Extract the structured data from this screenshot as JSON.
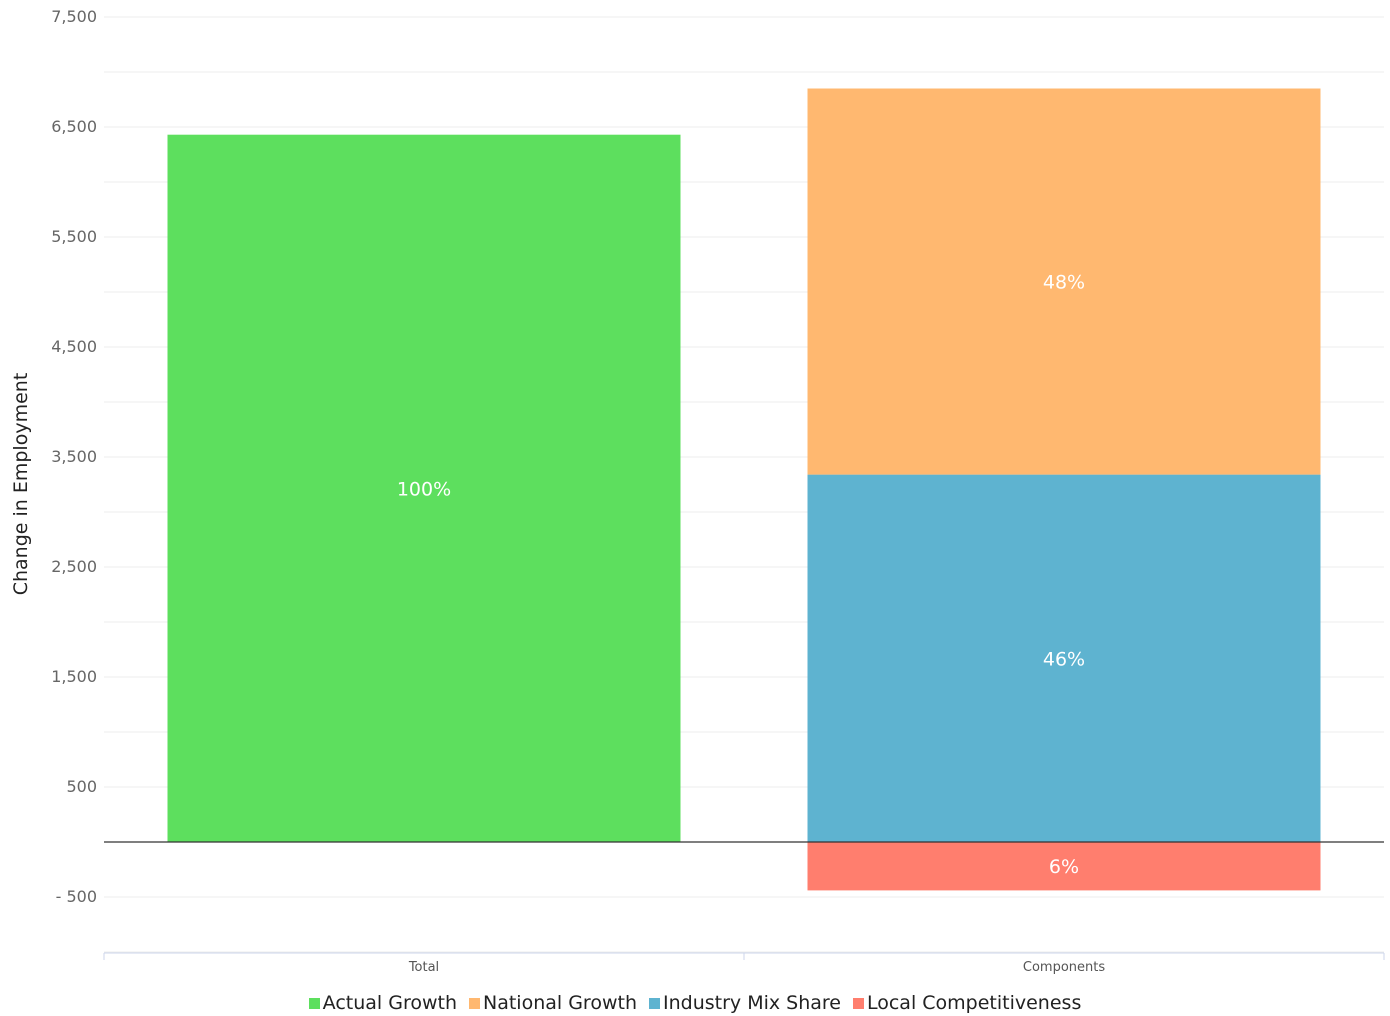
{
  "chart_data": {
    "type": "bar",
    "stacked": true,
    "categories": [
      "Total",
      "Components"
    ],
    "ylabel": "Change in Employment",
    "ylim": [
      -1000,
      7500
    ],
    "yticks": [
      7500,
      6500,
      5500,
      4500,
      3500,
      2500,
      1500,
      500,
      -500
    ],
    "ytick_labels": [
      "7,500",
      "6,500",
      "5,500",
      "4,500",
      "3,500",
      "2,500",
      "1,500",
      "500",
      "- 500"
    ],
    "grid": true,
    "legend_position": "bottom",
    "series": [
      {
        "name": "Actual Growth",
        "color": "#5ddf5e",
        "values": [
          6430,
          null
        ],
        "labels": [
          "100%",
          null
        ]
      },
      {
        "name": "Industry Mix Share",
        "color": "#5eb3d0",
        "values": [
          null,
          3340
        ],
        "labels": [
          null,
          "46%"
        ]
      },
      {
        "name": "National Growth",
        "color": "#ffb870",
        "values": [
          null,
          3510
        ],
        "labels": [
          null,
          "48%"
        ]
      },
      {
        "name": "Local Competitiveness",
        "color": "#ff7e6e",
        "values": [
          null,
          -440
        ],
        "labels": [
          null,
          "6%"
        ]
      }
    ],
    "legend_order": [
      "Actual Growth",
      "National Growth",
      "Industry Mix Share",
      "Local Competitiveness"
    ]
  }
}
